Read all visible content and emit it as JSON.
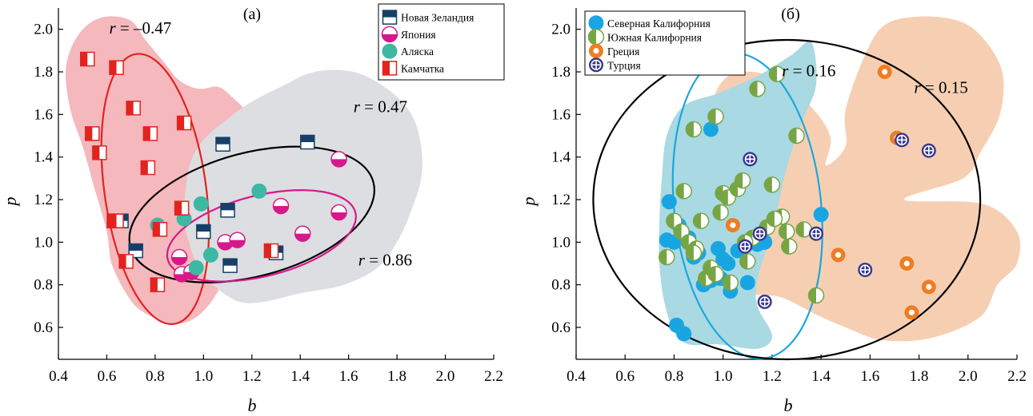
{
  "chart_data": [
    {
      "type": "scatter",
      "panel_label": "(а)",
      "xlabel": "b",
      "ylabel": "p",
      "xlim": [
        0.4,
        2.2
      ],
      "ylim": [
        0.45,
        2.1
      ],
      "xticks": [
        "0.4",
        "0.6",
        "0.8",
        "1.0",
        "1.2",
        "1.4",
        "1.6",
        "1.8",
        "2.0",
        "2.2"
      ],
      "yticks": [
        "0.6",
        "0.8",
        "1.0",
        "1.2",
        "1.4",
        "1.6",
        "1.8",
        "2.0"
      ],
      "legend_position": "top-right",
      "regions": [
        {
          "color": "#f4b8bd",
          "points": [
            [
              0.43,
              1.8
            ],
            [
              0.46,
              1.93
            ],
            [
              0.52,
              2.02
            ],
            [
              0.6,
              2.06
            ],
            [
              0.7,
              2.04
            ],
            [
              0.76,
              1.95
            ],
            [
              0.84,
              1.84
            ],
            [
              0.9,
              1.76
            ],
            [
              0.98,
              1.72
            ],
            [
              1.06,
              1.73
            ],
            [
              1.12,
              1.68
            ],
            [
              1.2,
              1.58
            ],
            [
              1.22,
              1.45
            ],
            [
              1.08,
              1.4
            ],
            [
              1.0,
              1.28
            ],
            [
              0.98,
              1.15
            ],
            [
              1.06,
              1.02
            ],
            [
              1.1,
              0.9
            ],
            [
              1.05,
              0.75
            ],
            [
              0.96,
              0.64
            ],
            [
              0.86,
              0.62
            ],
            [
              0.74,
              0.68
            ],
            [
              0.68,
              0.76
            ],
            [
              0.62,
              0.9
            ],
            [
              0.6,
              1.05
            ],
            [
              0.55,
              1.25
            ],
            [
              0.5,
              1.45
            ],
            [
              0.45,
              1.62
            ]
          ]
        },
        {
          "color": "#dcdee1",
          "points": [
            [
              0.92,
              1.12
            ],
            [
              0.94,
              1.35
            ],
            [
              1.0,
              1.48
            ],
            [
              1.1,
              1.58
            ],
            [
              1.2,
              1.66
            ],
            [
              1.32,
              1.73
            ],
            [
              1.46,
              1.8
            ],
            [
              1.62,
              1.8
            ],
            [
              1.76,
              1.72
            ],
            [
              1.86,
              1.6
            ],
            [
              1.9,
              1.45
            ],
            [
              1.9,
              1.3
            ],
            [
              1.86,
              1.15
            ],
            [
              1.8,
              1.0
            ],
            [
              1.72,
              0.88
            ],
            [
              1.58,
              0.8
            ],
            [
              1.4,
              0.76
            ],
            [
              1.25,
              0.72
            ],
            [
              1.15,
              0.72
            ],
            [
              1.06,
              0.78
            ],
            [
              0.98,
              0.88
            ],
            [
              0.94,
              1.0
            ]
          ]
        }
      ],
      "ellipses": [
        {
          "r_label": "r = –0.47",
          "color": "#e2231f",
          "center": [
            0.8,
            1.25
          ],
          "rx": 0.21,
          "ry": 0.64,
          "angle": 8
        },
        {
          "r_label": "r = 0.47",
          "color": "#000000",
          "center": [
            1.2,
            1.13
          ],
          "rx": 0.52,
          "ry": 0.29,
          "angle": 15
        },
        {
          "r_label": "r = 0.86",
          "color": "#d8188a",
          "center": [
            1.24,
            1.03
          ],
          "rx": 0.4,
          "ry": 0.19,
          "angle": 14
        }
      ],
      "r_label_positions": [
        [
          0.61,
          1.98
        ],
        [
          1.62,
          1.61
        ],
        [
          1.64,
          0.89
        ]
      ],
      "series": [
        {
          "name": "Новая Зеландия",
          "marker": "square-top-half",
          "color": "#163f69",
          "x": [
            0.66,
            0.72,
            1.08,
            1.1,
            1.0,
            1.11,
            1.3,
            1.43
          ],
          "y": [
            1.1,
            0.96,
            1.46,
            1.15,
            1.05,
            0.89,
            0.95,
            1.47
          ]
        },
        {
          "name": "Япония",
          "marker": "circle-bottom-half",
          "color": "#d8188a",
          "x": [
            0.9,
            0.91,
            0.95,
            1.09,
            1.14,
            1.32,
            1.41,
            1.56,
            1.56
          ],
          "y": [
            0.93,
            0.85,
            0.86,
            1.0,
            1.01,
            1.17,
            1.04,
            1.39,
            1.14
          ]
        },
        {
          "name": "Аляска",
          "marker": "circle",
          "color": "#3cb8a3",
          "x": [
            0.81,
            0.92,
            0.99,
            0.97,
            1.03,
            1.23
          ],
          "y": [
            1.08,
            1.11,
            1.18,
            0.88,
            0.94,
            1.24
          ]
        },
        {
          "name": "Камчатка",
          "marker": "square-left-half",
          "color": "#e2231f",
          "x": [
            0.52,
            0.54,
            0.57,
            0.64,
            0.63,
            0.71,
            0.78,
            0.77,
            0.92,
            0.91,
            0.68,
            0.82,
            0.81,
            0.64,
            1.28
          ],
          "y": [
            1.86,
            1.51,
            1.42,
            1.82,
            1.1,
            1.63,
            1.51,
            1.35,
            1.56,
            1.16,
            0.91,
            1.06,
            0.8,
            1.1,
            0.96
          ]
        }
      ]
    },
    {
      "type": "scatter",
      "panel_label": "(б)",
      "xlabel": "b",
      "ylabel": "p",
      "xlim": [
        0.4,
        2.2
      ],
      "ylim": [
        0.45,
        2.1
      ],
      "xticks": [
        "0.4",
        "0.6",
        "0.8",
        "1.0",
        "1.2",
        "1.4",
        "1.6",
        "1.8",
        "2.0",
        "2.2"
      ],
      "yticks": [
        "0.6",
        "0.8",
        "1.0",
        "1.2",
        "1.4",
        "1.6",
        "1.8",
        "2.0"
      ],
      "legend_position": "top-left",
      "regions": [
        {
          "color": "#f6cfb3",
          "points": [
            [
              1.5,
              1.62
            ],
            [
              1.58,
              1.88
            ],
            [
              1.66,
              2.02
            ],
            [
              1.8,
              2.06
            ],
            [
              1.96,
              2.04
            ],
            [
              2.06,
              1.96
            ],
            [
              2.14,
              1.8
            ],
            [
              2.13,
              1.6
            ],
            [
              2.05,
              1.42
            ],
            [
              1.98,
              1.3
            ],
            [
              1.74,
              1.2
            ],
            [
              2.06,
              1.18
            ],
            [
              2.2,
              1.05
            ],
            [
              2.2,
              0.9
            ],
            [
              2.12,
              0.8
            ],
            [
              2.05,
              0.65
            ],
            [
              1.85,
              0.55
            ],
            [
              1.65,
              0.54
            ],
            [
              1.5,
              0.6
            ],
            [
              1.38,
              0.66
            ],
            [
              1.24,
              0.74
            ],
            [
              1.1,
              0.76
            ],
            [
              1.02,
              0.82
            ],
            [
              0.98,
              0.98
            ],
            [
              1.02,
              1.25
            ],
            [
              0.98,
              1.45
            ],
            [
              0.96,
              1.66
            ],
            [
              1.02,
              1.78
            ],
            [
              1.12,
              1.8
            ],
            [
              1.24,
              1.76
            ],
            [
              1.32,
              1.68
            ],
            [
              1.4,
              1.58
            ],
            [
              1.44,
              1.48
            ],
            [
              1.42,
              1.36
            ],
            [
              1.5,
              1.45
            ]
          ]
        },
        {
          "color": "#a9d9e3",
          "points": [
            [
              0.75,
              1.3
            ],
            [
              0.77,
              1.5
            ],
            [
              0.84,
              1.64
            ],
            [
              0.98,
              1.7
            ],
            [
              1.14,
              1.78
            ],
            [
              1.28,
              1.88
            ],
            [
              1.36,
              1.94
            ],
            [
              1.38,
              1.74
            ],
            [
              1.32,
              1.56
            ],
            [
              1.26,
              1.35
            ],
            [
              1.22,
              1.15
            ],
            [
              1.18,
              0.98
            ],
            [
              1.14,
              0.82
            ],
            [
              1.14,
              0.7
            ],
            [
              1.2,
              0.56
            ],
            [
              1.14,
              0.5
            ],
            [
              0.98,
              0.52
            ],
            [
              0.86,
              0.52
            ],
            [
              0.8,
              0.58
            ],
            [
              0.76,
              0.72
            ],
            [
              0.74,
              0.9
            ],
            [
              0.74,
              1.1
            ]
          ]
        }
      ],
      "ellipses": [
        {
          "r_label": "r = 0.16",
          "color": "#1ba7de",
          "center": [
            1.1,
            1.17
          ],
          "rx": 0.3,
          "ry": 0.72,
          "angle": 6
        },
        {
          "r_label": "r = 0.15",
          "color": "#000000",
          "center": [
            1.26,
            1.2
          ],
          "rx": 0.79,
          "ry": 0.75,
          "angle": 0
        }
      ],
      "r_label_positions": [
        [
          1.24,
          1.78
        ],
        [
          1.78,
          1.7
        ]
      ],
      "series": [
        {
          "name": "Северная Калифорния",
          "marker": "circle",
          "color": "#18a6e3",
          "x": [
            0.78,
            0.77,
            0.8,
            0.82,
            0.86,
            0.88,
            0.9,
            0.92,
            0.95,
            0.98,
            0.99,
            1.0,
            1.02,
            1.03,
            1.06,
            1.1,
            1.14,
            1.17,
            1.4,
            0.95,
            0.81,
            0.84
          ],
          "y": [
            1.19,
            1.01,
            1.0,
            1.08,
            1.02,
            0.93,
            0.95,
            0.8,
            0.82,
            0.97,
            0.83,
            0.92,
            0.9,
            0.77,
            0.96,
            0.81,
            0.99,
            1.0,
            1.13,
            1.53,
            0.61,
            0.57
          ]
        },
        {
          "name": "Южная Калифорния",
          "marker": "circle-left-half",
          "color": "#77a544",
          "x": [
            0.77,
            0.8,
            0.83,
            0.84,
            0.86,
            0.88,
            0.89,
            0.91,
            0.93,
            0.95,
            0.97,
            0.99,
            1.0,
            1.02,
            1.03,
            1.06,
            1.08,
            1.1,
            1.12,
            1.14,
            1.18,
            1.2,
            1.22,
            1.24,
            1.27,
            1.3,
            1.33,
            0.88,
            0.97,
            1.09,
            1.21,
            1.26,
            1.38
          ],
          "y": [
            0.93,
            1.1,
            1.05,
            1.24,
            1.0,
            1.53,
            0.97,
            1.1,
            0.83,
            0.88,
            1.59,
            1.14,
            1.23,
            1.21,
            0.81,
            1.25,
            1.29,
            0.91,
            1.02,
            1.72,
            1.07,
            1.27,
            1.79,
            1.12,
            0.98,
            1.5,
            1.06,
            0.95,
            0.85,
            1.0,
            1.11,
            1.05,
            0.75
          ]
        },
        {
          "name": "Греция",
          "marker": "circle-ring",
          "color": "#ef7d22",
          "x": [
            1.04,
            1.47,
            1.66,
            1.71,
            1.75,
            1.77,
            1.84
          ],
          "y": [
            1.08,
            0.94,
            1.8,
            1.49,
            0.9,
            0.67,
            0.79
          ]
        },
        {
          "name": "Турция",
          "marker": "circle-cross",
          "color": "#37378e",
          "x": [
            1.09,
            1.11,
            1.15,
            1.17,
            1.38,
            1.58,
            1.73,
            1.84
          ],
          "y": [
            0.98,
            1.39,
            1.04,
            0.72,
            1.04,
            0.87,
            1.48,
            1.43
          ]
        }
      ]
    }
  ]
}
